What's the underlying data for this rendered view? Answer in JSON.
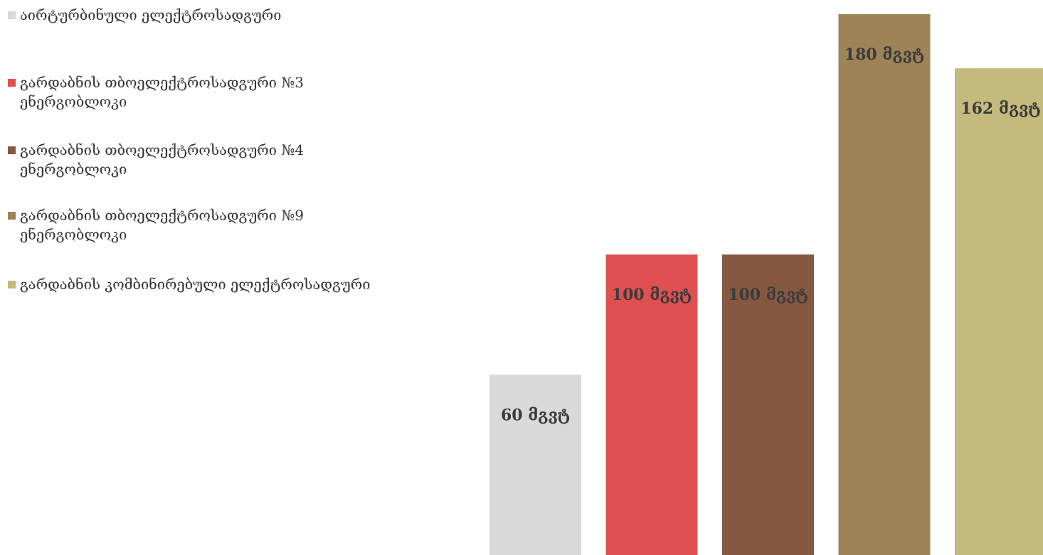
{
  "chart_data": {
    "type": "bar",
    "title": "",
    "xlabel": "",
    "ylabel": "",
    "ylim": [
      0,
      180
    ],
    "grid": false,
    "legend_position": "top-left",
    "categories": [
      "აირტურბინული ელექტროსადგური",
      "გარდაბნის თბოელექტროსადგური №3 ენერგობლოკი",
      "გარდაბნის თბოელექტროსადგური №4 ენერგობლოკი",
      "გარდაბნის თბოელექტროსადგური №9 ენერგობლოკი",
      "გარდაბნის კომბინირებული ელექტროსადგური"
    ],
    "values": [
      60,
      100,
      100,
      180,
      162
    ],
    "unit": "მგვტ",
    "series": [
      {
        "name": "აირტურბინული ელექტროსადგური",
        "value": 60,
        "label": "60 მგვტ",
        "color": "#d9d9d9"
      },
      {
        "name": "გარდაბნის თბოელექტროსადგური №3 ენერგობლოკი",
        "value": 100,
        "label": "100 მგვტ",
        "color": "#e05050"
      },
      {
        "name": "გარდაბნის თბოელექტროსადგური №4 ენერგობლოკი",
        "value": 100,
        "label": "100 მგვტ",
        "color": "#875841"
      },
      {
        "name": "გარდაბნის თბოელექტროსადგური №9 ენერგობლოკი",
        "value": 180,
        "label": "180 მგვტ",
        "color": "#9d8457"
      },
      {
        "name": "გარდაბნის კომბინირებული ელექტროსადგური",
        "value": 162,
        "label": "162 მგვტ",
        "color": "#c4ba7e"
      }
    ],
    "legend": [
      {
        "lines": [
          "აირტურბინული ელექტროსადგური"
        ],
        "color": "#d9d9d9"
      },
      {
        "lines": [
          "გარდაბნის თბოელექტროსადგური №3",
          "ენერგობლოკი"
        ],
        "color": "#e05050"
      },
      {
        "lines": [
          "გარდაბნის თბოელექტროსადგური №4",
          "ენერგობლოკი"
        ],
        "color": "#875841"
      },
      {
        "lines": [
          "გარდაბნის თბოელექტროსადგური №9",
          "ენერგობლოკი"
        ],
        "color": "#9d8457"
      },
      {
        "lines": [
          "გარდაბნის კომბინირებული ელექტროსადგური"
        ],
        "color": "#c4ba7e"
      }
    ]
  }
}
